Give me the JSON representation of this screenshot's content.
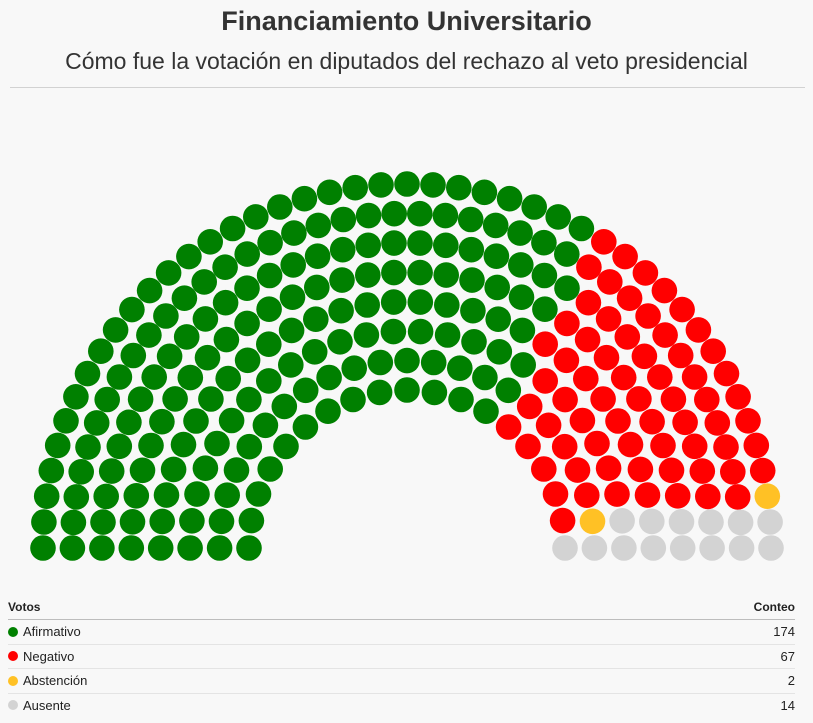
{
  "header": {
    "title": "Financiamiento Universitario",
    "subtitle": "Cómo fue la votación en diputados del rechazo al veto presidencial"
  },
  "legend": {
    "col_votes": "Votos",
    "col_count": "Conteo"
  },
  "chart_data": {
    "type": "parliament",
    "title": "Financiamiento Universitario",
    "subtitle": "Cómo fue la votación en diputados del rechazo al veto presidencial",
    "total_seats": 257,
    "series": [
      {
        "name": "Afirmativo",
        "value": 174,
        "color": "#008000"
      },
      {
        "name": "Negativo",
        "value": 67,
        "color": "#ff0000"
      },
      {
        "name": "Abstención",
        "value": 2,
        "color": "#ffc125"
      },
      {
        "name": "Ausente",
        "value": 14,
        "color": "#d3d3d3"
      }
    ]
  }
}
